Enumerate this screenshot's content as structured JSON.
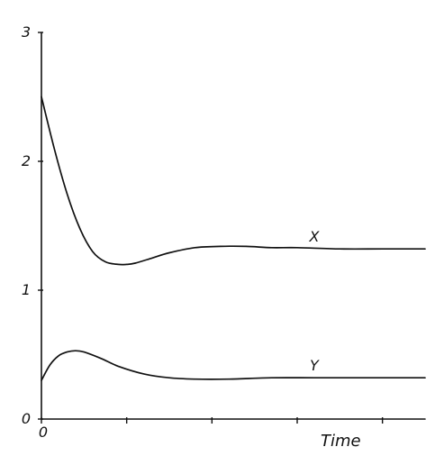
{
  "chart_data": {
    "type": "line",
    "title": "",
    "xlabel": "Time",
    "ylabel": "",
    "ylim": [
      0,
      3
    ],
    "yticks": [
      {
        "value": 0,
        "label": "0"
      },
      {
        "value": 1,
        "label": "1"
      },
      {
        "value": 2,
        "label": "2"
      },
      {
        "value": 3,
        "label": "3"
      }
    ],
    "xticks": [
      {
        "value": 0,
        "label": "0"
      },
      {
        "value": 1,
        "label": ""
      },
      {
        "value": 2,
        "label": ""
      },
      {
        "value": 3,
        "label": ""
      },
      {
        "value": 4,
        "label": ""
      }
    ],
    "xlim": [
      0,
      4.5
    ],
    "grid": false,
    "legend": "none",
    "series": [
      {
        "name": "X",
        "x": [
          0,
          0.15,
          0.3,
          0.45,
          0.6,
          0.75,
          0.9,
          1.0,
          1.1,
          1.3,
          1.5,
          1.8,
          2.1,
          2.4,
          2.7,
          3.0,
          3.5,
          4.0,
          4.5
        ],
        "y": [
          2.5,
          2.1,
          1.75,
          1.48,
          1.3,
          1.22,
          1.2,
          1.2,
          1.21,
          1.25,
          1.29,
          1.33,
          1.34,
          1.34,
          1.33,
          1.33,
          1.32,
          1.32,
          1.32
        ]
      },
      {
        "name": "Y",
        "x": [
          0,
          0.1,
          0.2,
          0.3,
          0.4,
          0.5,
          0.7,
          0.9,
          1.2,
          1.5,
          1.8,
          2.2,
          2.7,
          3.2,
          3.7,
          4.2,
          4.5
        ],
        "y": [
          0.3,
          0.42,
          0.49,
          0.52,
          0.53,
          0.52,
          0.47,
          0.41,
          0.35,
          0.32,
          0.31,
          0.31,
          0.32,
          0.32,
          0.32,
          0.32,
          0.32
        ]
      }
    ]
  }
}
